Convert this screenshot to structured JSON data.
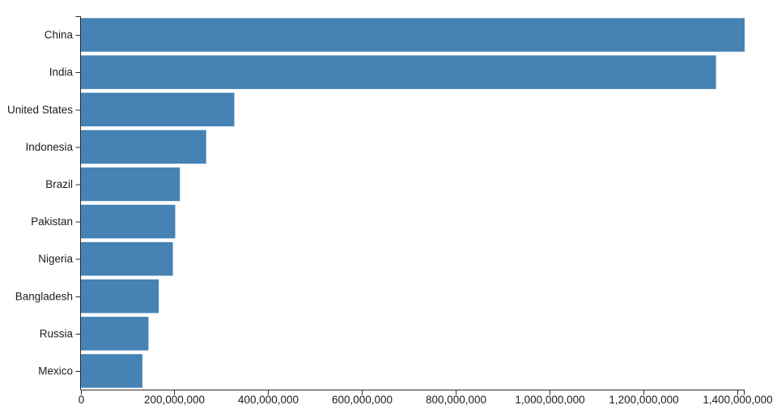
{
  "chart_data": {
    "type": "bar",
    "orientation": "horizontal",
    "title": "",
    "xlabel": "",
    "ylabel": "",
    "categories": [
      "China",
      "India",
      "United States",
      "Indonesia",
      "Brazil",
      "Pakistan",
      "Nigeria",
      "Bangladesh",
      "Russia",
      "Mexico"
    ],
    "values": [
      1415000000,
      1354000000,
      327000000,
      267000000,
      211000000,
      201000000,
      196000000,
      166000000,
      144000000,
      131000000
    ],
    "xlim": [
      0,
      1415000000
    ],
    "x_ticks": [
      0,
      200000000,
      400000000,
      600000000,
      800000000,
      1000000000,
      1200000000,
      1400000000
    ],
    "x_tick_labels": [
      "0",
      "200,000,000",
      "400,000,000",
      "600,000,000",
      "800,000,000",
      "1,000,000,000",
      "1,200,000,000",
      "1,400,000,000"
    ],
    "grid": false,
    "legend": false,
    "colors": {
      "bar": "#4682b4",
      "axis": "#2b2b2b",
      "text": "#1d1d1d",
      "background": "#ffffff"
    }
  }
}
